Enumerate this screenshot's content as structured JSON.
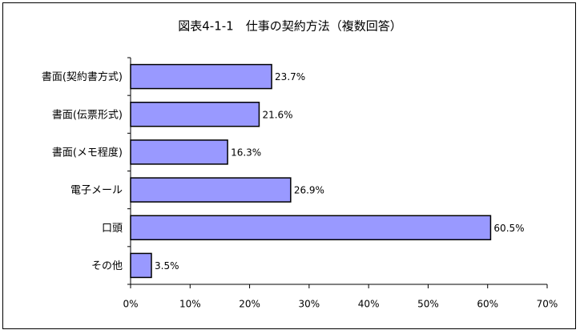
{
  "chart_data": {
    "type": "bar",
    "orientation": "horizontal",
    "title": "図表4-1-1　仕事の契約方法（複数回答）",
    "categories": [
      "書面(契約書方式)",
      "書面(伝票形式)",
      "書面(メモ程度)",
      "電子メール",
      "口頭",
      "その他"
    ],
    "values": [
      23.7,
      21.6,
      16.3,
      26.9,
      60.5,
      3.5
    ],
    "value_labels": [
      "23.7%",
      "21.6%",
      "16.3%",
      "26.9%",
      "60.5%",
      "3.5%"
    ],
    "color": "#9999ff",
    "xlim": [
      0,
      70
    ],
    "xticks": [
      {
        "value": 0,
        "label": "0%"
      },
      {
        "value": 10,
        "label": "10%"
      },
      {
        "value": 20,
        "label": "20%"
      },
      {
        "value": 30,
        "label": "30%"
      },
      {
        "value": 40,
        "label": "40%"
      },
      {
        "value": 50,
        "label": "50%"
      },
      {
        "value": 60,
        "label": "60%"
      },
      {
        "value": 70,
        "label": "70%"
      }
    ],
    "grid": false
  }
}
